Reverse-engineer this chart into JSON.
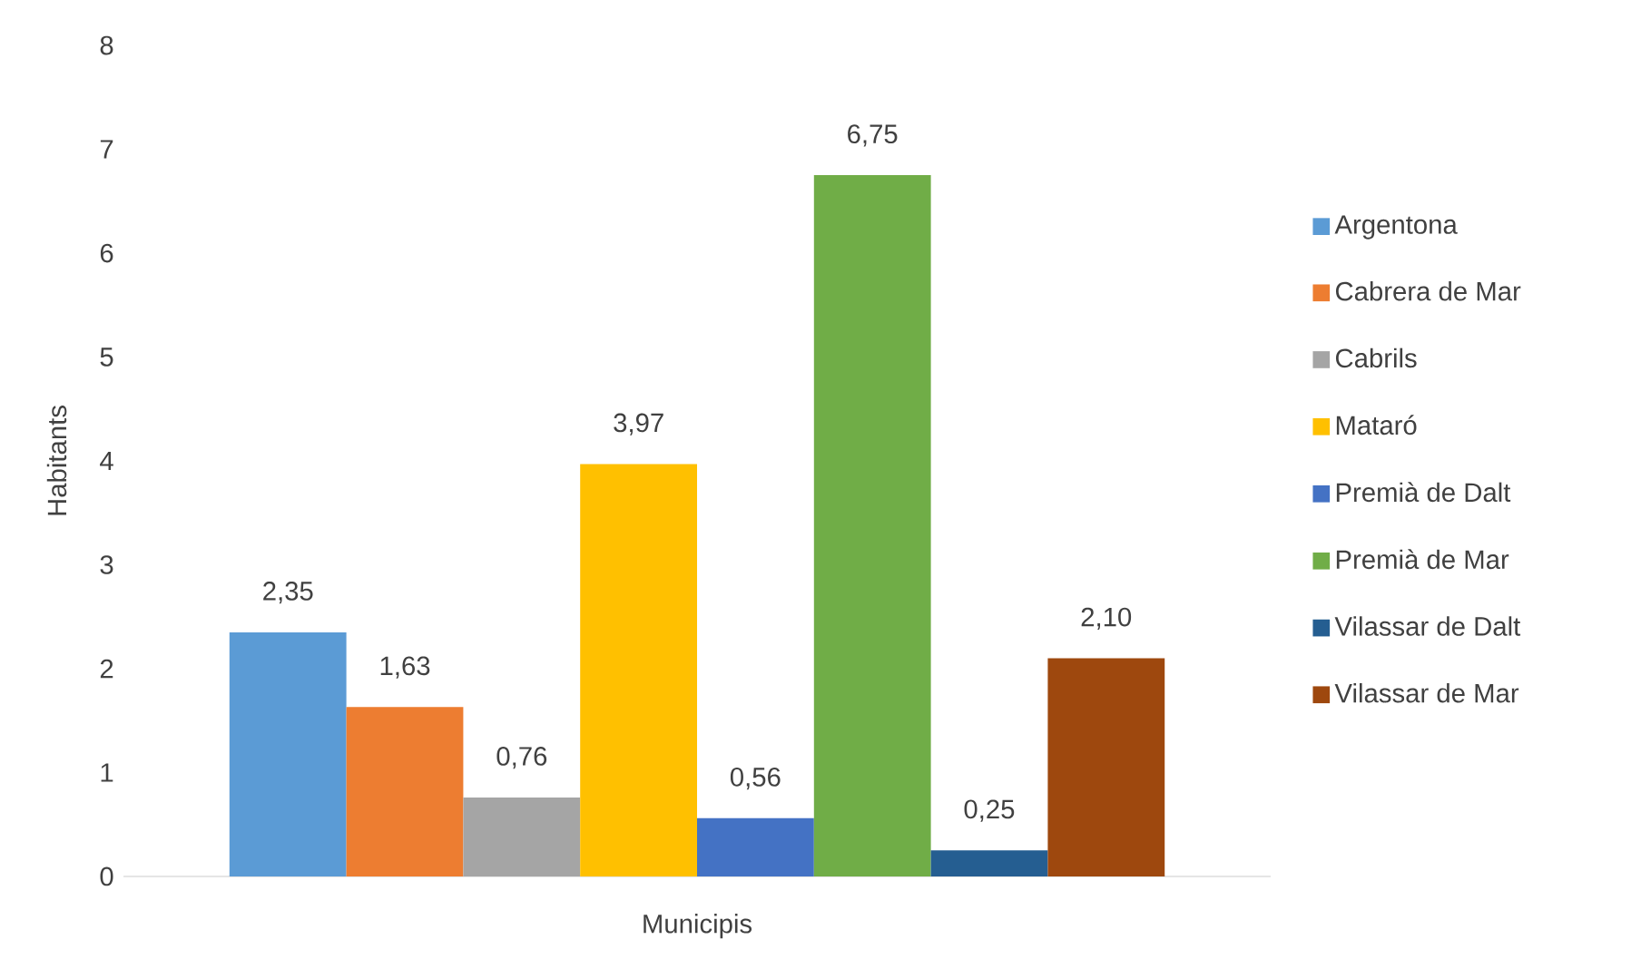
{
  "chart_data": {
    "type": "bar",
    "categories": [
      null
    ],
    "xlabel": "Municipis",
    "ylabel": "Habitants",
    "ylim": [
      0,
      8
    ],
    "yticks": [
      0,
      1,
      2,
      3,
      4,
      5,
      6,
      7,
      8
    ],
    "legend": "right",
    "grid": false,
    "series": [
      {
        "name": "Argentona",
        "color": "#5b9bd5",
        "values": [
          2.35
        ],
        "value_labels": [
          "2,35"
        ]
      },
      {
        "name": "Cabrera de Mar",
        "color": "#ed7d31",
        "values": [
          1.63
        ],
        "value_labels": [
          "1,63"
        ]
      },
      {
        "name": "Cabrils",
        "color": "#a5a5a5",
        "values": [
          0.76
        ],
        "value_labels": [
          "0,76"
        ]
      },
      {
        "name": "Mataró",
        "color": "#ffc000",
        "values": [
          3.97
        ],
        "value_labels": [
          "3,97"
        ]
      },
      {
        "name": "Premià de Dalt",
        "color": "#4472c4",
        "values": [
          0.56
        ],
        "value_labels": [
          "0,56"
        ]
      },
      {
        "name": "Premià de Mar",
        "color": "#70ad47",
        "values": [
          6.75
        ],
        "value_labels": [
          "6,75"
        ]
      },
      {
        "name": "Vilassar de Dalt",
        "color": "#255e91",
        "values": [
          0.25
        ],
        "value_labels": [
          "0,25"
        ]
      },
      {
        "name": "Vilassar de Mar",
        "color": "#9e480e",
        "values": [
          2.1
        ],
        "value_labels": [
          "2,10"
        ]
      }
    ]
  }
}
